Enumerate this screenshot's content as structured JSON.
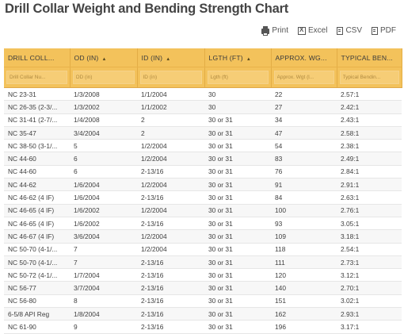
{
  "page": {
    "title": "Drill Collar Weight and Bending Strength Chart"
  },
  "toolbar": {
    "print_label": "Print",
    "excel_label": "Excel",
    "csv_label": "CSV",
    "pdf_label": "PDF"
  },
  "table": {
    "columns": [
      {
        "label": "DRILL COLL...",
        "sort": "",
        "placeholder": "Drill Collar Nu..."
      },
      {
        "label": "OD (IN)",
        "sort": "▲",
        "placeholder": "OD (in)"
      },
      {
        "label": "ID (IN)",
        "sort": "▲",
        "placeholder": "ID (in)"
      },
      {
        "label": "LGTH (FT)",
        "sort": "▲",
        "placeholder": "Lgth (ft)"
      },
      {
        "label": "APPROX. WG...",
        "sort": "",
        "placeholder": "Approx. Wgt (l..."
      },
      {
        "label": "TYPICAL BEN...",
        "sort": "",
        "placeholder": "Typical Bendin..."
      }
    ],
    "rows": [
      [
        "NC 23-31",
        "1/3/2008",
        "1/1/2004",
        "30",
        "22",
        "2.57:1"
      ],
      [
        "NC 26-35 (2-3/...",
        "1/3/2002",
        "1/1/2002",
        "30",
        "27",
        "2.42:1"
      ],
      [
        "NC 31-41 (2-7/...",
        "1/4/2008",
        "2",
        "30 or 31",
        "34",
        "2.43:1"
      ],
      [
        "NC 35-47",
        "3/4/2004",
        "2",
        "30 or 31",
        "47",
        "2.58:1"
      ],
      [
        "NC 38-50 (3-1/...",
        "5",
        "1/2/2004",
        "30 or 31",
        "54",
        "2.38:1"
      ],
      [
        "NC 44-60",
        "6",
        "1/2/2004",
        "30 or 31",
        "83",
        "2.49:1"
      ],
      [
        "NC 44-60",
        "6",
        "2-13/16",
        "30 or 31",
        "76",
        "2.84:1"
      ],
      [
        "NC 44-62",
        "1/6/2004",
        "1/2/2004",
        "30 or 31",
        "91",
        "2.91:1"
      ],
      [
        "NC 46-62 (4 IF)",
        "1/6/2004",
        "2-13/16",
        "30 or 31",
        "84",
        "2.63:1"
      ],
      [
        "NC 46-65 (4 IF)",
        "1/6/2002",
        "1/2/2004",
        "30 or 31",
        "100",
        "2.76:1"
      ],
      [
        "NC 46-65 (4 IF)",
        "1/6/2002",
        "2-13/16",
        "30 or 31",
        "93",
        "3.05:1"
      ],
      [
        "NC 46-67 (4 IF)",
        "3/6/2004",
        "1/2/2004",
        "30 or 31",
        "109",
        "3.18:1"
      ],
      [
        "NC 50-70 (4-1/...",
        "7",
        "1/2/2004",
        "30 or 31",
        "118",
        "2.54:1"
      ],
      [
        "NC 50-70 (4-1/...",
        "7",
        "2-13/16",
        "30 or 31",
        "111",
        "2.73:1"
      ],
      [
        "NC 50-72 (4-1/...",
        "1/7/2004",
        "2-13/16",
        "30 or 31",
        "120",
        "3.12:1"
      ],
      [
        "NC 56-77",
        "3/7/2004",
        "2-13/16",
        "30 or 31",
        "140",
        "2.70:1"
      ],
      [
        "NC 56-80",
        "8",
        "2-13/16",
        "30 or 31",
        "151",
        "3.02:1"
      ],
      [
        "6-5/8 API Reg",
        "1/8/2004",
        "2-13/16",
        "30 or 31",
        "162",
        "2.93:1"
      ],
      [
        "NC 61-90",
        "9",
        "2-13/16",
        "30 or 31",
        "196",
        "3.17:1"
      ]
    ]
  }
}
